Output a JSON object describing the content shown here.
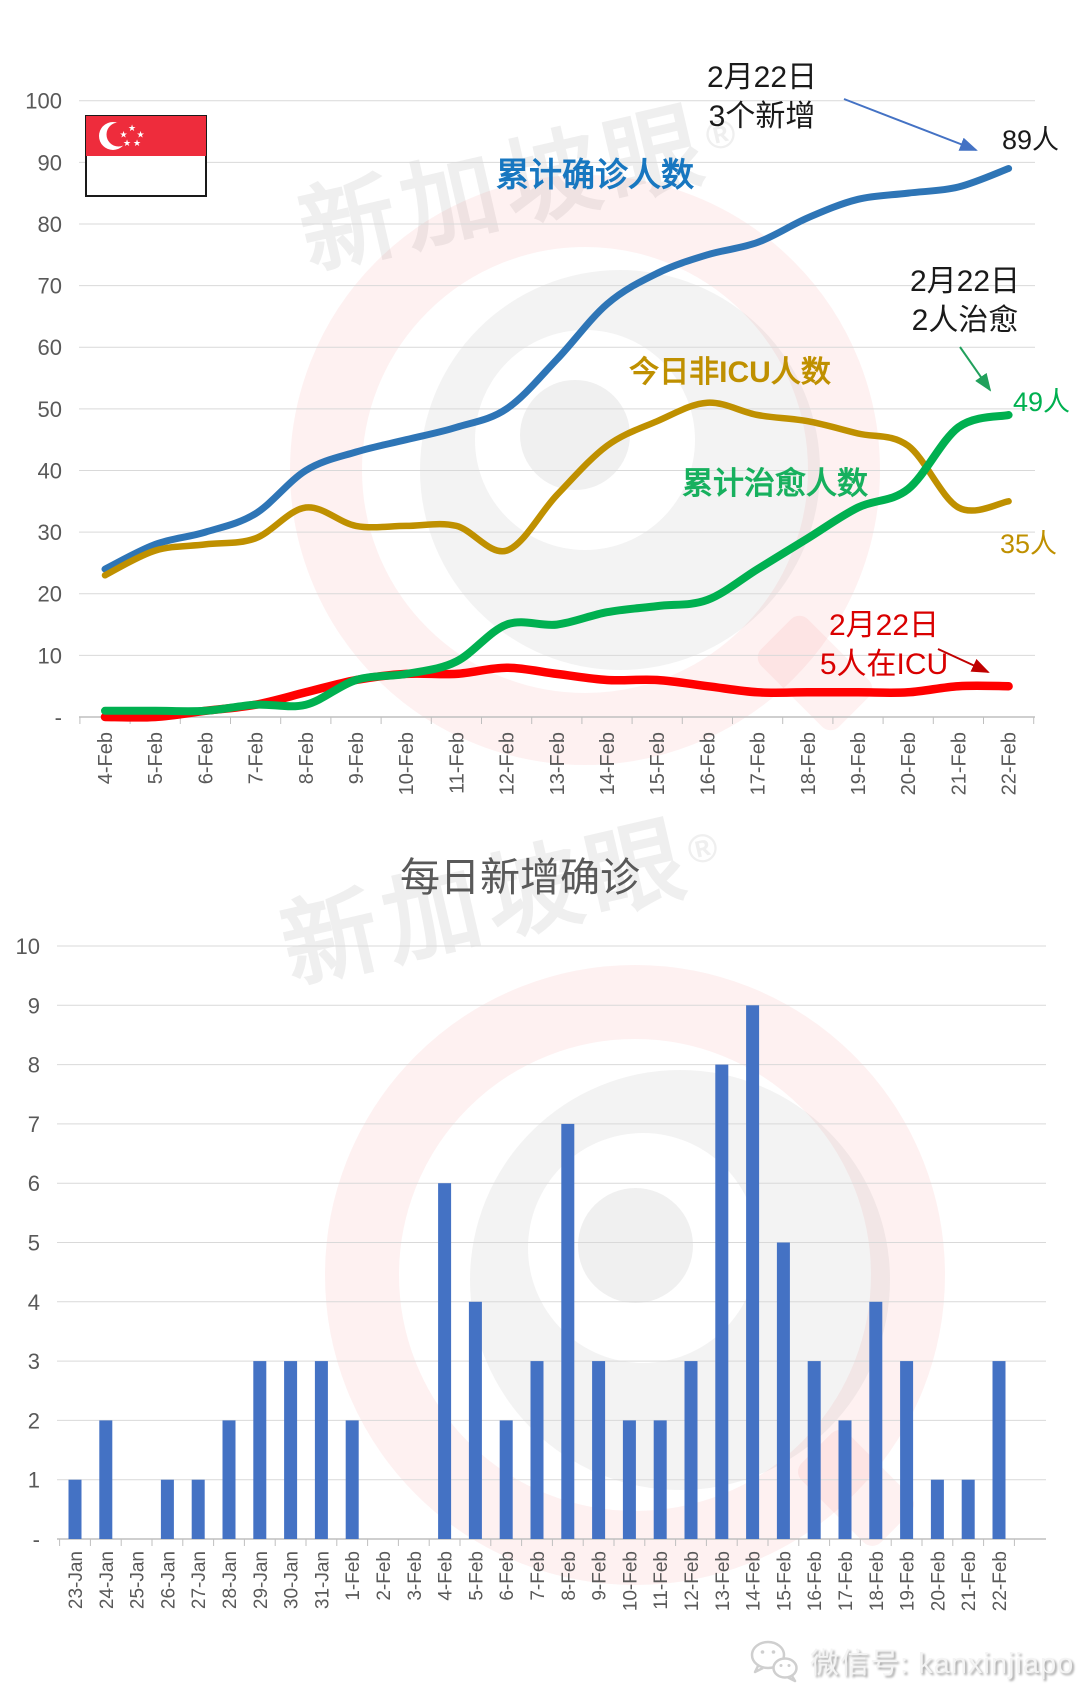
{
  "colors": {
    "confirmed_line": "#2E75B6",
    "non_icu_line": "#BF9000",
    "cured_line": "#00B050",
    "icu_line": "#FF0000",
    "bar": "#4472C4",
    "axis_text": "#595959",
    "gridline": "#D9D9D9",
    "axis_line": "#BFBFBF",
    "flag_red": "#EE2C3C",
    "annotation_red": "#D90000"
  },
  "top_chart": {
    "annotations": {
      "new_cases": {
        "line1": "2月22日",
        "line2": "3个新增",
        "value": "89人"
      },
      "cured": {
        "line1": "2月22日",
        "line2": "2人治愈",
        "value": "49人"
      },
      "non_icu_value": "35人",
      "icu": {
        "line1": "2月22日",
        "line2": "5人在ICU"
      }
    },
    "zero_label": "-"
  },
  "bottom_chart": {
    "zero_label": "-"
  },
  "watermark": {
    "text": "新加坡眼",
    "reg": "®"
  },
  "footer": {
    "wechat_label": "微信号: kanxinjiapo"
  },
  "chart_data": [
    {
      "type": "line",
      "title": "",
      "categories": [
        "4-Feb",
        "5-Feb",
        "6-Feb",
        "7-Feb",
        "8-Feb",
        "9-Feb",
        "10-Feb",
        "11-Feb",
        "12-Feb",
        "13-Feb",
        "14-Feb",
        "15-Feb",
        "16-Feb",
        "17-Feb",
        "18-Feb",
        "19-Feb",
        "20-Feb",
        "21-Feb",
        "22-Feb"
      ],
      "series": [
        {
          "name": "累计确诊人数",
          "color": "#2E75B6",
          "width": 7,
          "values": [
            24,
            28,
            30,
            33,
            40,
            43,
            45,
            47,
            50,
            58,
            67,
            72,
            75,
            77,
            81,
            84,
            85,
            86,
            89
          ]
        },
        {
          "name": "今日非ICU人数",
          "color": "#BF9000",
          "width": 6.5,
          "values": [
            23,
            27,
            28,
            29,
            34,
            31,
            31,
            31,
            27,
            36,
            44,
            48,
            51,
            49,
            48,
            46,
            44,
            34,
            35
          ]
        },
        {
          "name": "ICU人数",
          "color": "#FF0000",
          "width": 8.5,
          "values": [
            0,
            0,
            1,
            2,
            4,
            6,
            7,
            7,
            8,
            7,
            6,
            6,
            5,
            4,
            4,
            4,
            4,
            5,
            5
          ]
        },
        {
          "name": "累计治愈人数",
          "color": "#00B050",
          "width": 8,
          "values": [
            1,
            1,
            1,
            2,
            2,
            6,
            7,
            9,
            15,
            15,
            17,
            18,
            19,
            24,
            29,
            34,
            37,
            47,
            49
          ]
        }
      ],
      "ylim": [
        0,
        100
      ],
      "ytick_step": 10,
      "grid": true,
      "legend_position": "floating-labels"
    },
    {
      "type": "bar",
      "title": "每日新增确诊",
      "categories": [
        "23-Jan",
        "24-Jan",
        "25-Jan",
        "26-Jan",
        "27-Jan",
        "28-Jan",
        "29-Jan",
        "30-Jan",
        "31-Jan",
        "1-Feb",
        "2-Feb",
        "3-Feb",
        "4-Feb",
        "5-Feb",
        "6-Feb",
        "7-Feb",
        "8-Feb",
        "9-Feb",
        "10-Feb",
        "11-Feb",
        "12-Feb",
        "13-Feb",
        "14-Feb",
        "15-Feb",
        "16-Feb",
        "17-Feb",
        "18-Feb",
        "19-Feb",
        "20-Feb",
        "21-Feb",
        "22-Feb"
      ],
      "values": [
        1,
        2,
        0,
        1,
        1,
        2,
        3,
        3,
        3,
        2,
        0,
        0,
        6,
        4,
        2,
        3,
        7,
        3,
        2,
        2,
        3,
        8,
        9,
        5,
        3,
        2,
        4,
        3,
        1,
        1,
        3
      ],
      "ylim": [
        0,
        10
      ],
      "ytick_step": 1,
      "grid": true
    }
  ]
}
